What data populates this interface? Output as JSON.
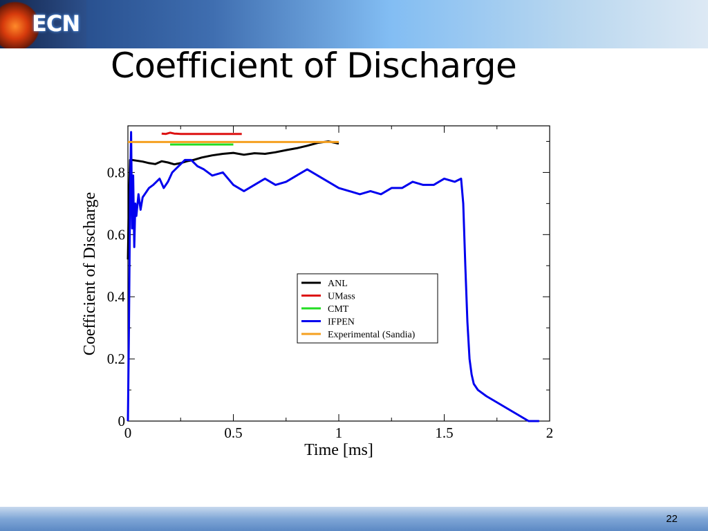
{
  "slide": {
    "logo_text": "ECN",
    "title": "Coefficient of Discharge",
    "page_number": "22"
  },
  "chart_data": {
    "type": "line",
    "xlabel": "Time [ms]",
    "ylabel": "Coefficient of Discharge",
    "xlim": [
      0,
      2
    ],
    "ylim": [
      0,
      0.95
    ],
    "xticks": [
      0,
      0.5,
      1,
      1.5,
      2
    ],
    "xtick_labels": [
      "0",
      "0.5",
      "1",
      "1.5",
      "2"
    ],
    "yticks": [
      0,
      0.2,
      0.4,
      0.6,
      0.8
    ],
    "ytick_labels": [
      "0",
      "0.2",
      "0.4",
      "0.6",
      "0.8"
    ],
    "legend_position": "center-right",
    "series": [
      {
        "name": "ANL",
        "color": "#000000",
        "x": [
          0.0,
          0.005,
          0.01,
          0.02,
          0.04,
          0.07,
          0.1,
          0.13,
          0.16,
          0.19,
          0.22,
          0.25,
          0.28,
          0.31,
          0.35,
          0.4,
          0.45,
          0.5,
          0.55,
          0.6,
          0.65,
          0.7,
          0.75,
          0.8,
          0.85,
          0.9,
          0.95,
          1.0
        ],
        "y": [
          0.52,
          0.72,
          0.84,
          0.84,
          0.838,
          0.835,
          0.83,
          0.827,
          0.836,
          0.832,
          0.826,
          0.83,
          0.836,
          0.84,
          0.848,
          0.855,
          0.86,
          0.863,
          0.857,
          0.862,
          0.86,
          0.865,
          0.872,
          0.878,
          0.886,
          0.895,
          0.9,
          0.893
        ]
      },
      {
        "name": "UMass",
        "color": "#dd1111",
        "x": [
          0.16,
          0.18,
          0.2,
          0.22,
          0.25,
          0.3,
          0.35,
          0.4,
          0.45,
          0.5,
          0.54
        ],
        "y": [
          0.925,
          0.924,
          0.928,
          0.925,
          0.924,
          0.924,
          0.924,
          0.924,
          0.924,
          0.924,
          0.924
        ]
      },
      {
        "name": "CMT",
        "color": "#22dd22",
        "x": [
          0.2,
          0.3,
          0.4,
          0.5
        ],
        "y": [
          0.89,
          0.89,
          0.89,
          0.89
        ]
      },
      {
        "name": "IFPEN",
        "color": "#0000ee",
        "x": [
          0.0,
          0.005,
          0.01,
          0.015,
          0.02,
          0.025,
          0.03,
          0.035,
          0.04,
          0.05,
          0.06,
          0.07,
          0.08,
          0.1,
          0.12,
          0.15,
          0.17,
          0.19,
          0.21,
          0.24,
          0.27,
          0.3,
          0.33,
          0.36,
          0.4,
          0.45,
          0.5,
          0.55,
          0.6,
          0.65,
          0.7,
          0.75,
          0.8,
          0.85,
          0.9,
          0.95,
          1.0,
          1.05,
          1.1,
          1.15,
          1.2,
          1.25,
          1.3,
          1.35,
          1.4,
          1.45,
          1.5,
          1.55,
          1.58,
          1.59,
          1.6,
          1.61,
          1.62,
          1.63,
          1.64,
          1.66,
          1.7,
          1.75,
          1.8,
          1.85,
          1.9,
          1.95
        ],
        "y": [
          0.0,
          0.3,
          0.72,
          0.93,
          0.62,
          0.79,
          0.56,
          0.7,
          0.66,
          0.73,
          0.68,
          0.72,
          0.73,
          0.75,
          0.76,
          0.78,
          0.75,
          0.77,
          0.8,
          0.82,
          0.84,
          0.84,
          0.82,
          0.81,
          0.79,
          0.8,
          0.76,
          0.74,
          0.76,
          0.78,
          0.76,
          0.77,
          0.79,
          0.81,
          0.79,
          0.77,
          0.75,
          0.74,
          0.73,
          0.74,
          0.73,
          0.75,
          0.75,
          0.77,
          0.76,
          0.76,
          0.78,
          0.77,
          0.78,
          0.7,
          0.5,
          0.32,
          0.2,
          0.15,
          0.12,
          0.1,
          0.08,
          0.06,
          0.04,
          0.02,
          0.0,
          0.0
        ]
      },
      {
        "name": "Experimental (Sandia)",
        "color": "#f5a020",
        "x": [
          0.0,
          1.0
        ],
        "y": [
          0.898,
          0.898
        ]
      }
    ]
  }
}
